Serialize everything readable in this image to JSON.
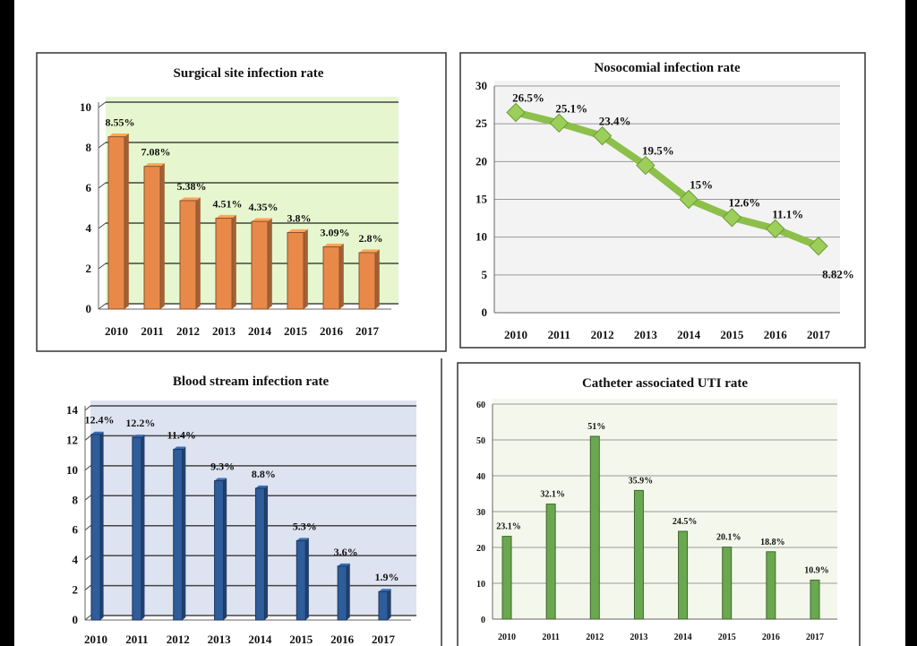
{
  "chart_data": [
    {
      "type": "bar",
      "title": "Surgical site infection rate",
      "categories": [
        "2010",
        "2011",
        "2012",
        "2013",
        "2014",
        "2015",
        "2016",
        "2017"
      ],
      "values": [
        8.55,
        7.08,
        5.38,
        4.51,
        4.35,
        3.8,
        3.09,
        2.8
      ],
      "data_labels": [
        "8.55%",
        "7.08%",
        "5.38%",
        "4.51%",
        "4.35%",
        "3.8%",
        "3.09%",
        "2.8%"
      ],
      "ylim": [
        0,
        10
      ],
      "yticks": [
        0,
        2,
        4,
        6,
        8,
        10
      ],
      "grid": true,
      "style": "3d",
      "bar_color": "#e8894a",
      "plot_background": "#e6f7cf"
    },
    {
      "type": "line",
      "title": "Nosocomial infection rate",
      "categories": [
        "2010",
        "2011",
        "2012",
        "2013",
        "2014",
        "2015",
        "2016",
        "2017"
      ],
      "values": [
        26.5,
        25.1,
        23.4,
        19.5,
        15,
        12.6,
        11.1,
        8.82
      ],
      "data_labels": [
        "26.5%",
        "25.1%",
        "23.4%",
        "19.5%",
        "15%",
        "12.6%",
        "11.1%",
        "8.82%"
      ],
      "ylim": [
        0,
        30
      ],
      "yticks": [
        0,
        5,
        10,
        15,
        20,
        25,
        30
      ],
      "grid": true,
      "marker": "diamond",
      "line_color": "#8cc04a",
      "plot_background": "#f3f3f3"
    },
    {
      "type": "bar",
      "title": "Blood stream infection rate",
      "categories": [
        "2010",
        "2011",
        "2012",
        "2013",
        "2014",
        "2015",
        "2016",
        "2017"
      ],
      "values": [
        12.4,
        12.2,
        11.4,
        9.3,
        8.8,
        5.3,
        3.6,
        1.9
      ],
      "data_labels": [
        "12.4%",
        "12.2%",
        "11.4%",
        "9.3%",
        "8.8%",
        "5.3%",
        "3.6%",
        "1.9%"
      ],
      "ylim": [
        0,
        14
      ],
      "yticks": [
        0,
        2,
        4,
        6,
        8,
        10,
        12,
        14
      ],
      "grid": true,
      "style": "3d",
      "bar_color": "#2f5c9a",
      "plot_background": "#dde3f0"
    },
    {
      "type": "bar",
      "title": "Catheter associated UTI rate",
      "categories": [
        "2010",
        "2011",
        "2012",
        "2013",
        "2014",
        "2015",
        "2016",
        "2017"
      ],
      "values": [
        23.1,
        32.1,
        51,
        35.9,
        24.5,
        20.1,
        18.8,
        10.9
      ],
      "data_labels": [
        "23.1%",
        "32.1%",
        "51%",
        "35.9%",
        "24.5%",
        "20.1%",
        "18.8%",
        "10.9%"
      ],
      "ylim": [
        0,
        60
      ],
      "yticks": [
        0,
        10,
        20,
        30,
        40,
        50,
        60
      ],
      "grid": true,
      "bar_color": "#6aa84f",
      "plot_background": "#f4f8ec"
    }
  ]
}
